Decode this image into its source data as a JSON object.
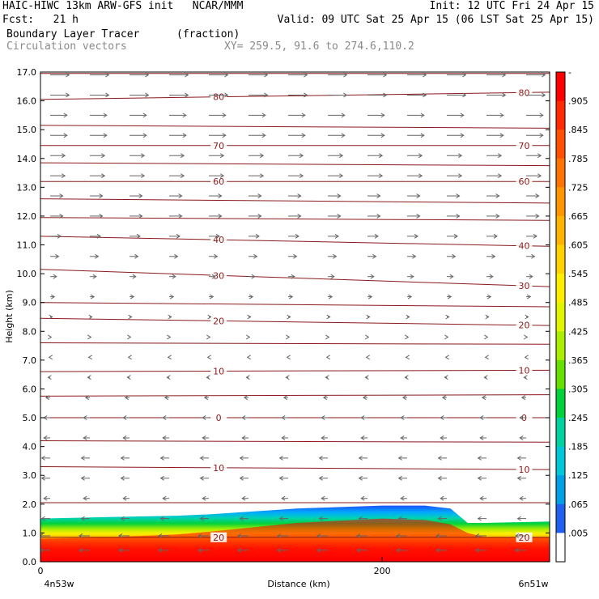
{
  "header": {
    "line1_left": "HAIC-HIWC 13km ARW-GFS init   NCAR/MMM",
    "line1_right": "Init: 12 UTC Fri 24 Apr 15",
    "line2_left": "Fcst:   21 h",
    "line2_right": "Valid: 09 UTC Sat 25 Apr 15 (06 LST Sat 25 Apr 15)",
    "line3_left": "Boundary Layer Tracer",
    "line3_mid": "(fraction)",
    "line4_left": "Circulation vectors",
    "line4_mid": "XY= 259.5, 91.6 to 274.6,110.2"
  },
  "chart_data": {
    "type": "heatmap",
    "xlabel": "Distance (km)",
    "ylabel": "Height (km)",
    "xlim": [
      0,
      298
    ],
    "ylim": [
      0,
      17
    ],
    "x_ticks": [
      {
        "value": 0,
        "label": "0"
      },
      {
        "value": 200,
        "label": "200"
      }
    ],
    "y_ticks": [
      "0.0",
      "1.0",
      "2.0",
      "3.0",
      "4.0",
      "5.0",
      "6.0",
      "7.0",
      "8.0",
      "9.0",
      "10.0",
      "11.0",
      "12.0",
      "13.0",
      "14.0",
      "15.0",
      "16.0",
      "17.0"
    ],
    "endpoint_labels": {
      "left": "4n53w",
      "right": "6n51w"
    },
    "colorbar": {
      "labels": [
        "-",
        ".905",
        ".845",
        ".785",
        ".725",
        ".665",
        ".605",
        ".545",
        ".485",
        ".425",
        ".365",
        ".305",
        ".245",
        ".185",
        ".125",
        ".065",
        ".005"
      ],
      "colors": [
        "#ff0000",
        "#ff2a00",
        "#ff5000",
        "#ff7300",
        "#ff9600",
        "#ffb400",
        "#ffd200",
        "#ffee00",
        "#e2f500",
        "#aaee00",
        "#66e000",
        "#00d23a",
        "#00d2a0",
        "#00c8d8",
        "#00a0e6",
        "#2060f0",
        "#ffffff"
      ]
    },
    "tracer_field": {
      "x": [
        0,
        40,
        80,
        100,
        150,
        200,
        225,
        240,
        250,
        260,
        298
      ],
      "top_km": [
        1.5,
        1.55,
        1.6,
        1.65,
        1.85,
        1.95,
        1.95,
        1.85,
        1.35,
        1.35,
        1.4
      ],
      "core_top_km": [
        0.8,
        0.85,
        0.95,
        1.05,
        1.35,
        1.5,
        1.45,
        1.3,
        1.0,
        0.85,
        0.85
      ]
    },
    "temperature_contours": [
      {
        "label": "80",
        "y": [
          16.05,
          16.3
        ]
      },
      {
        "label": "70",
        "y": [
          14.45,
          14.45
        ]
      },
      {
        "label": "60",
        "y": [
          13.2,
          13.2
        ]
      },
      {
        "label": "40",
        "y": [
          11.3,
          10.95
        ]
      },
      {
        "label": "30",
        "y": [
          10.15,
          9.55
        ]
      },
      {
        "label": "20",
        "y": [
          8.45,
          8.2
        ]
      },
      {
        "label": "10",
        "y": [
          6.6,
          6.65
        ]
      },
      {
        "label": "0",
        "y": [
          5.0,
          5.0
        ]
      },
      {
        "label": "10",
        "y": [
          3.3,
          3.2
        ]
      },
      {
        "label": "20",
        "y": [
          0.85,
          0.85
        ]
      }
    ],
    "unlabeled_contours": [
      {
        "y": [
          16.95,
          16.95
        ]
      },
      {
        "y": [
          15.15,
          15.05
        ]
      },
      {
        "y": [
          13.85,
          13.75
        ]
      },
      {
        "y": [
          12.6,
          12.45
        ]
      },
      {
        "y": [
          11.95,
          11.85
        ]
      },
      {
        "y": [
          9.0,
          8.85
        ]
      },
      {
        "y": [
          7.6,
          7.55
        ]
      },
      {
        "y": [
          5.75,
          5.8
        ]
      },
      {
        "y": [
          4.2,
          4.15
        ]
      },
      {
        "y": [
          2.05,
          2.05
        ]
      }
    ],
    "vectors": {
      "levels_km": [
        16.9,
        16.2,
        15.5,
        14.8,
        14.1,
        13.4,
        12.7,
        12.0,
        11.3,
        10.6,
        9.9,
        9.2,
        8.5,
        7.8,
        7.1,
        6.4,
        5.7,
        5.0,
        4.3,
        3.6,
        2.9,
        2.2,
        1.5,
        0.9,
        0.4
      ],
      "u_ms": [
        9,
        9,
        8,
        8,
        7,
        7,
        6,
        6,
        5,
        4,
        3,
        2,
        1,
        0.5,
        -0.5,
        -1,
        -2,
        -3,
        -3,
        -4,
        -4,
        -3,
        -4,
        -5,
        -5
      ]
    }
  }
}
